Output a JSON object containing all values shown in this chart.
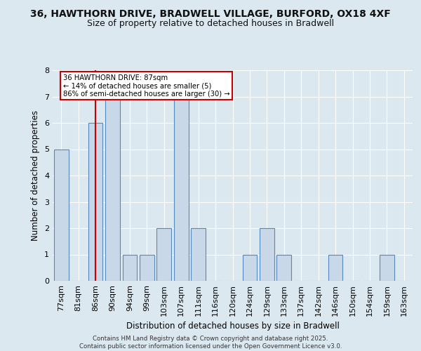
{
  "title1": "36, HAWTHORN DRIVE, BRADWELL VILLAGE, BURFORD, OX18 4XF",
  "title2": "Size of property relative to detached houses in Bradwell",
  "xlabel": "Distribution of detached houses by size in Bradwell",
  "ylabel": "Number of detached properties",
  "categories": [
    "77sqm",
    "81sqm",
    "86sqm",
    "90sqm",
    "94sqm",
    "99sqm",
    "103sqm",
    "107sqm",
    "111sqm",
    "116sqm",
    "120sqm",
    "124sqm",
    "129sqm",
    "133sqm",
    "137sqm",
    "142sqm",
    "146sqm",
    "150sqm",
    "154sqm",
    "159sqm",
    "163sqm"
  ],
  "values": [
    5,
    0,
    6,
    7,
    1,
    1,
    2,
    7,
    2,
    0,
    0,
    1,
    2,
    1,
    0,
    0,
    1,
    0,
    0,
    1,
    0
  ],
  "bar_color": "#c8d8e8",
  "bar_edge_color": "#5588bb",
  "vline_x_idx": 2,
  "vline_color": "#cc0000",
  "annotation_text": "36 HAWTHORN DRIVE: 87sqm\n← 14% of detached houses are smaller (5)\n86% of semi-detached houses are larger (30) →",
  "annotation_box_color": "#cc0000",
  "annotation_box_bg": "#ffffff",
  "ylim": [
    0,
    8
  ],
  "yticks": [
    0,
    1,
    2,
    3,
    4,
    5,
    6,
    7,
    8
  ],
  "footer": "Contains HM Land Registry data © Crown copyright and database right 2025.\nContains public sector information licensed under the Open Government Licence v3.0.",
  "bg_color": "#dce8f0",
  "plot_bg_color": "#dce8f0",
  "title_fontsize": 10,
  "subtitle_fontsize": 9
}
